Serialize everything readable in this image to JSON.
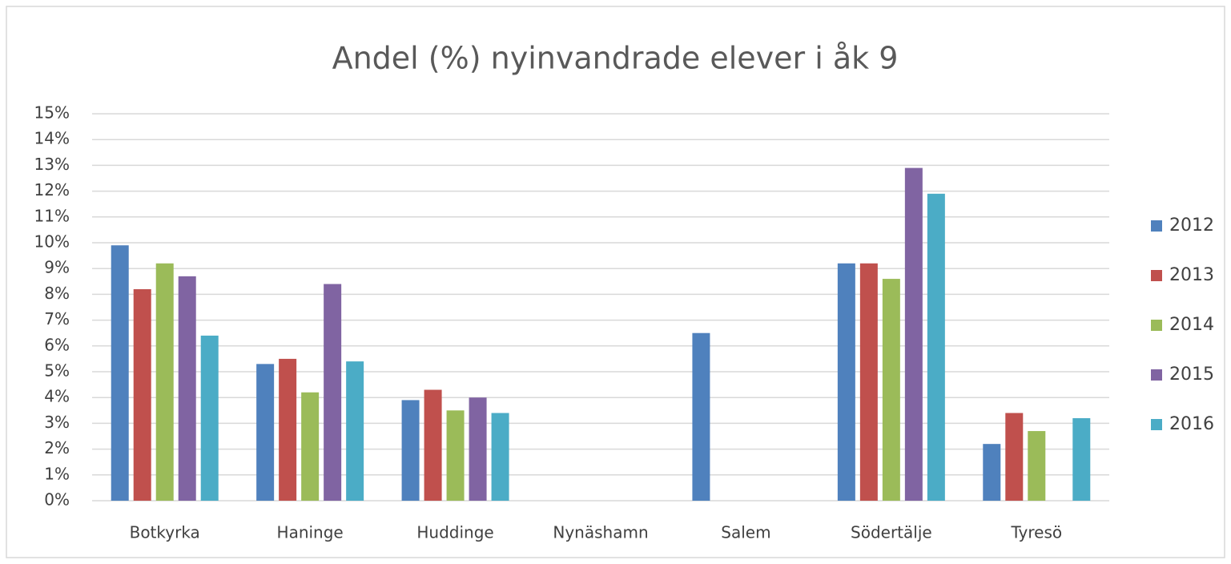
{
  "chart_data": {
    "type": "bar",
    "title": "Andel (%) nyinvandrade elever i åk 9",
    "categories": [
      "Botkyrka",
      "Haninge",
      "Huddinge",
      "Nynäshamn",
      "Salem",
      "Södertälje",
      "Tyresö"
    ],
    "series": [
      {
        "name": "2012",
        "color": "#4f81bd",
        "values": [
          9.9,
          5.3,
          3.9,
          null,
          6.5,
          9.2,
          2.2
        ]
      },
      {
        "name": "2013",
        "color": "#c0504d",
        "values": [
          8.2,
          5.5,
          4.3,
          null,
          null,
          9.2,
          3.4
        ]
      },
      {
        "name": "2014",
        "color": "#9bbb59",
        "values": [
          9.2,
          4.2,
          3.5,
          null,
          null,
          8.6,
          2.7
        ]
      },
      {
        "name": "2015",
        "color": "#8064a2",
        "values": [
          8.7,
          8.4,
          4.0,
          null,
          null,
          12.9,
          null
        ]
      },
      {
        "name": "2016",
        "color": "#4bacc6",
        "values": [
          6.4,
          5.4,
          3.4,
          null,
          null,
          11.9,
          3.2
        ]
      }
    ],
    "ylim": [
      0,
      15
    ],
    "yticks": [
      {
        "value": 0,
        "label": "0%"
      },
      {
        "value": 1,
        "label": "1%"
      },
      {
        "value": 2,
        "label": "2%"
      },
      {
        "value": 3,
        "label": "3%"
      },
      {
        "value": 4,
        "label": "4%"
      },
      {
        "value": 5,
        "label": "5%"
      },
      {
        "value": 6,
        "label": "6%"
      },
      {
        "value": 7,
        "label": "7%"
      },
      {
        "value": 8,
        "label": "8%"
      },
      {
        "value": 9,
        "label": "9%"
      },
      {
        "value": 10,
        "label": "10%"
      },
      {
        "value": 11,
        "label": "11%"
      },
      {
        "value": 12,
        "label": "12%"
      },
      {
        "value": 13,
        "label": "13%"
      },
      {
        "value": 14,
        "label": "14%"
      },
      {
        "value": 15,
        "label": "15%"
      }
    ],
    "grid": true,
    "legend": "right"
  }
}
